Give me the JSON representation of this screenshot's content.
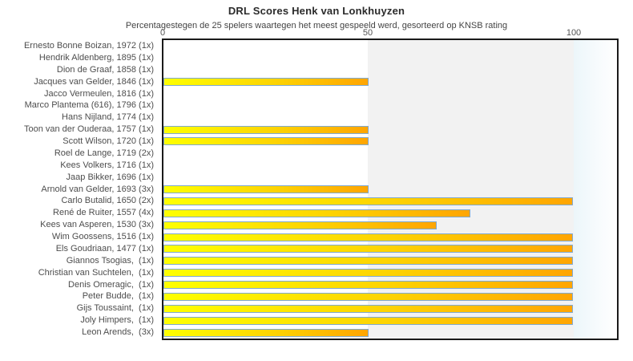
{
  "chart_data": {
    "type": "bar",
    "orientation": "horizontal",
    "title": "DRL Scores Henk van Lonkhuyzen",
    "subtitle": "Percentagestegen de 25 spelers waartegen het meest gespeeld werd, gesorteerd op KNSB rating",
    "xlabel": "",
    "ylabel": "",
    "xlim": [
      0,
      110
    ],
    "x_ticks": [
      "0",
      "50",
      "100"
    ],
    "shaded_band_50_100": true,
    "legend": null,
    "categories": [
      "Ernesto Bonne Boizan, 1972 (1x)",
      "Hendrik Aldenberg, 1895 (1x)",
      "Dion de Graaf, 1858 (1x)",
      "Jacques van Gelder, 1846 (1x)",
      "Jacco Vermeulen, 1816 (1x)",
      "Marco Plantema (616), 1796 (1x)",
      "Hans Nijland, 1774 (1x)",
      "Toon van der Ouderaa, 1757 (1x)",
      "Scott Wilson, 1720 (1x)",
      "Roel de Lange, 1719 (2x)",
      "Kees Volkers, 1716 (1x)",
      "Jaap Bikker, 1696 (1x)",
      "Arnold van Gelder, 1693 (3x)",
      "Carlo Butalid, 1650 (2x)",
      "René de Ruiter, 1557 (4x)",
      "Kees van Asperen, 1530 (3x)",
      "Wim Goossens, 1516 (1x)",
      "Els Goudriaan, 1477 (1x)",
      "Giannos Tsogias,  (1x)",
      "Christian van Suchtelen,  (1x)",
      "Denis Omeragic,  (1x)",
      "Peter Budde,  (1x)",
      "Gijs Toussaint,  (1x)",
      "Joly Himpers,  (1x)",
      "Leon Arends,  (3x)"
    ],
    "values": [
      0,
      0,
      0,
      50,
      0,
      0,
      0,
      50,
      50,
      0,
      0,
      0,
      50,
      100,
      75,
      66.7,
      100,
      100,
      100,
      100,
      100,
      100,
      100,
      100,
      50
    ],
    "colors": {
      "bar_gradient_start": "#feff00",
      "bar_gradient_end": "#ffa502",
      "bar_border": "#7fa9cf",
      "band_50_100": "#f2f2f2",
      "band_beyond_100": "#ecf6fa",
      "plot_border": "#1a1a1a",
      "label_text": "#4d4d4d"
    }
  }
}
